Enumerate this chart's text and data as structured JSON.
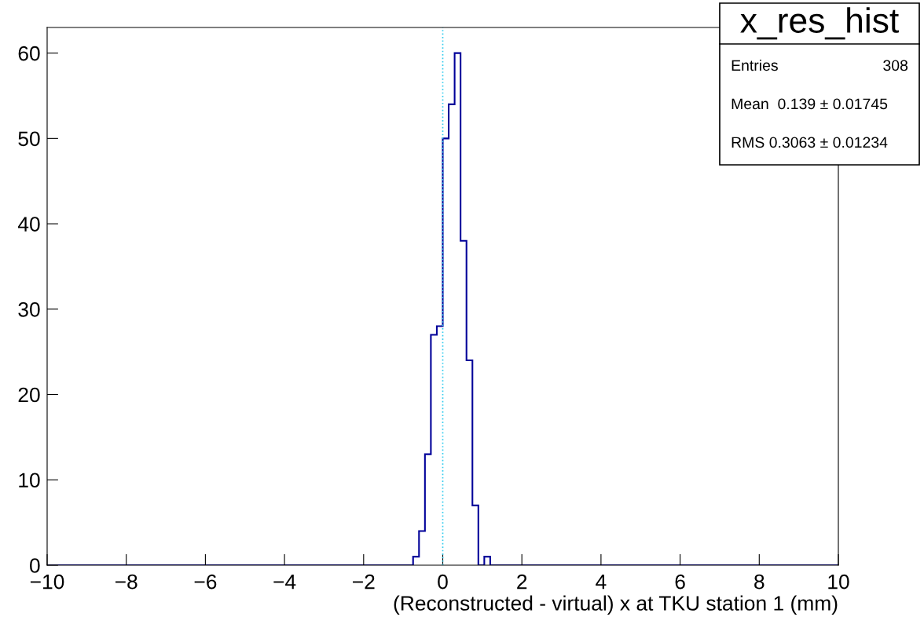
{
  "chart_data": {
    "type": "histogram",
    "title": "x_res_hist",
    "xlabel": "(Reconstructed - virtual) x at TKU station 1 (mm)",
    "bins": [
      -10,
      -0.75,
      -0.6,
      -0.45,
      -0.3,
      -0.15,
      0,
      0.15,
      0.3,
      0.45,
      0.6,
      0.75,
      0.9,
      1.05,
      1.2,
      10
    ],
    "values": [
      0,
      1,
      4,
      13,
      27,
      28,
      50,
      54,
      60,
      38,
      24,
      7,
      0,
      1,
      0
    ],
    "color": "#000099",
    "xlim": [
      -10,
      10
    ],
    "ylim": [
      0,
      63
    ],
    "xticks": [
      {
        "value": -10,
        "label": "−10"
      },
      {
        "value": -8,
        "label": "−8"
      },
      {
        "value": -6,
        "label": "−6"
      },
      {
        "value": -4,
        "label": "−4"
      },
      {
        "value": -2,
        "label": "−2"
      },
      0,
      2,
      4,
      6,
      8,
      10
    ],
    "yticks": [
      0,
      10,
      20,
      30,
      40,
      50,
      60
    ],
    "ref_lines": [
      {
        "axis": "x",
        "value": 0,
        "color": "#33ccee",
        "line_style": "dotted"
      }
    ],
    "annotations": [
      "Entries",
      "308",
      "Mean  0.139 ± 0.01745",
      "RMS 0.3063 ± 0.01234"
    ],
    "grid": false,
    "legend": false
  }
}
